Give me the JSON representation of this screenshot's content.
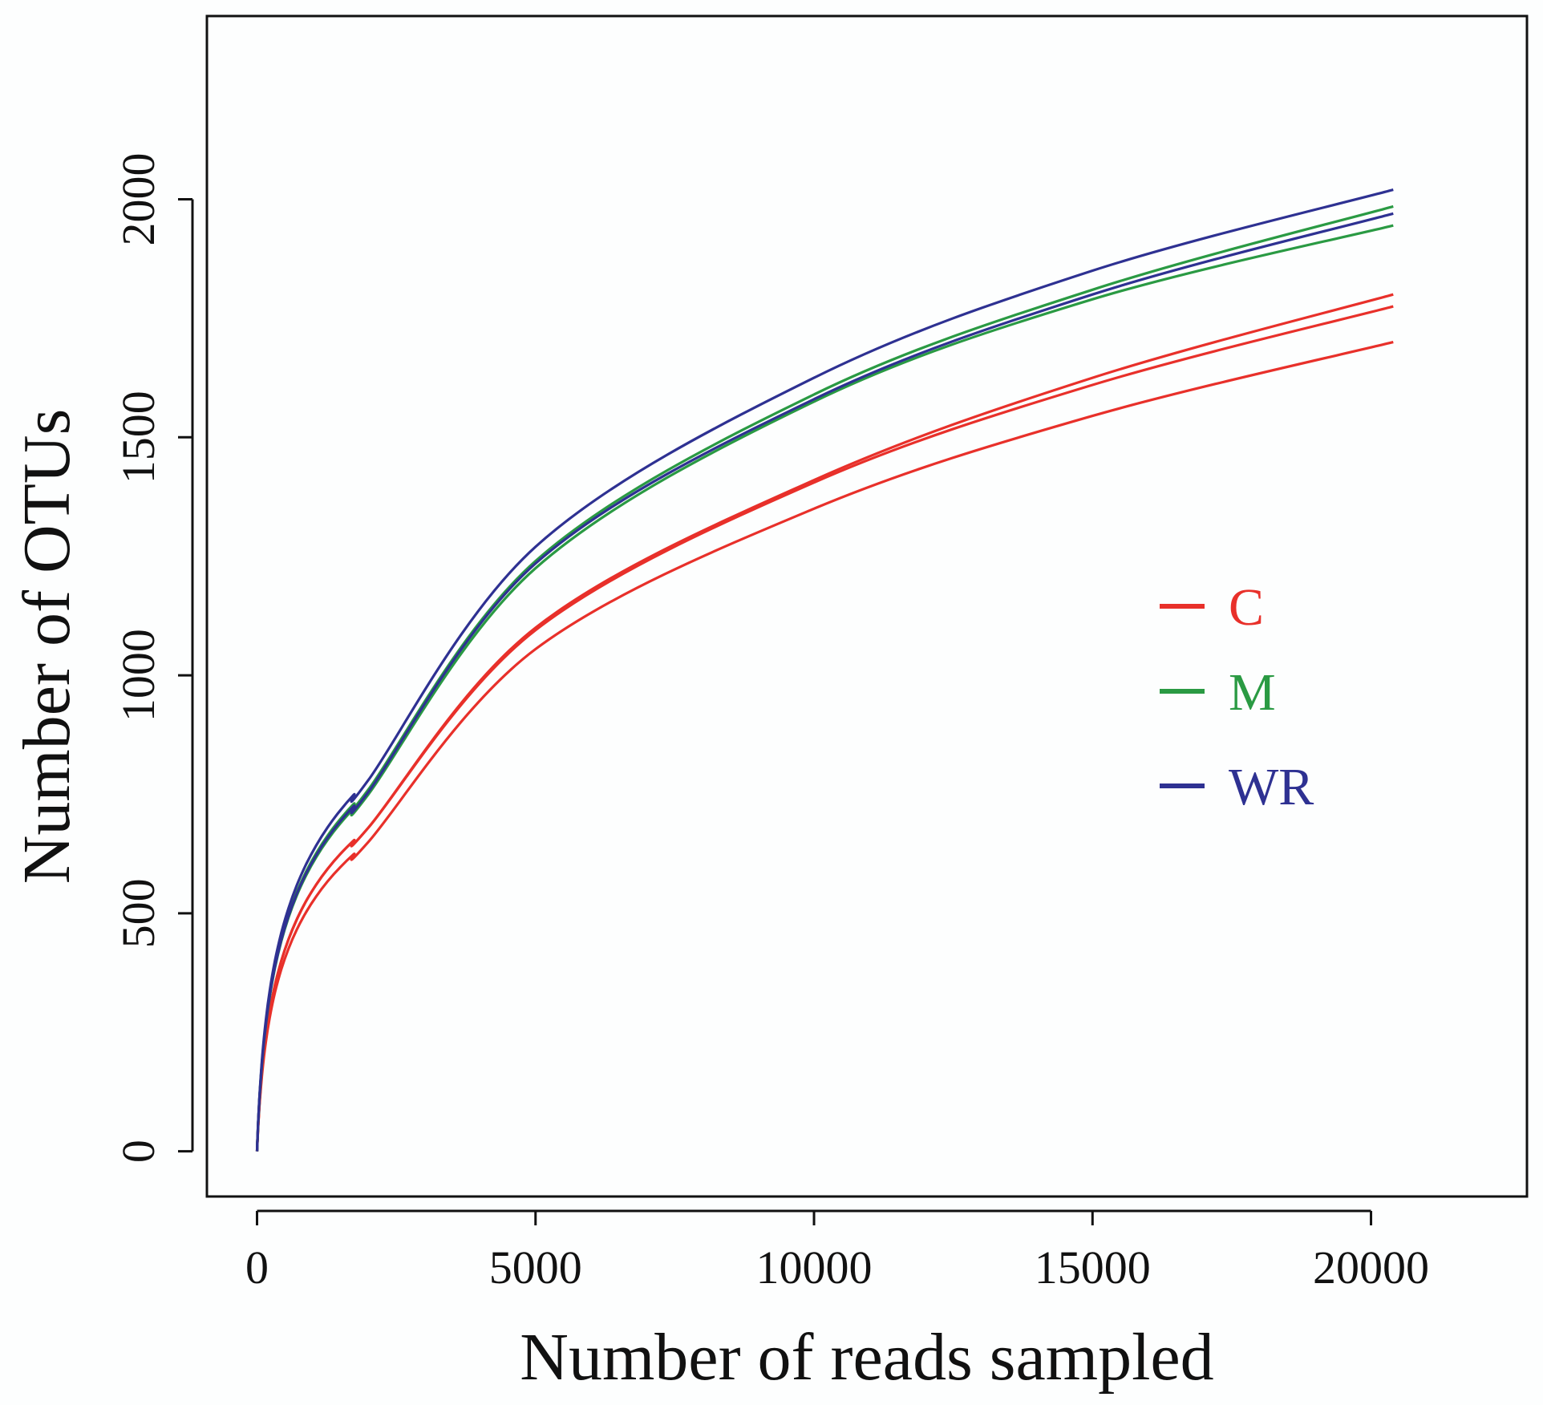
{
  "chart_data": {
    "type": "line",
    "title": "",
    "xlabel": "Number of reads sampled",
    "ylabel": "Number of OTUs",
    "xlim": [
      -900,
      22800
    ],
    "ylim": [
      -95,
      2385
    ],
    "x_ticks": [
      0,
      5000,
      10000,
      15000,
      20000
    ],
    "x_tick_labels": [
      "0",
      "5000",
      "10000",
      "15000",
      "20000"
    ],
    "y_ticks": [
      0,
      500,
      1000,
      1500,
      2000
    ],
    "y_tick_labels": [
      "0",
      "500",
      "1000",
      "1500",
      "2000"
    ],
    "grid": false,
    "legend": {
      "position": "right-middle",
      "entries": [
        {
          "label": "C",
          "color": "#e8302a"
        },
        {
          "label": "M",
          "color": "#2a9a43"
        },
        {
          "label": "WR",
          "color": "#2e3192"
        }
      ]
    },
    "series": [
      {
        "name": "C",
        "group": "C",
        "color": "#e8302a",
        "x": [
          0,
          2000,
          5000,
          10000,
          15000,
          20400
        ],
        "y": [
          0,
          680,
          1100,
          1410,
          1625,
          1800
        ]
      },
      {
        "name": "C",
        "group": "C",
        "color": "#e8302a",
        "x": [
          0,
          2000,
          5000,
          10000,
          15000,
          20400
        ],
        "y": [
          0,
          680,
          1095,
          1405,
          1610,
          1775
        ]
      },
      {
        "name": "C",
        "group": "C",
        "color": "#e8302a",
        "x": [
          0,
          2000,
          5000,
          10000,
          15000,
          20400
        ],
        "y": [
          0,
          650,
          1055,
          1350,
          1545,
          1700
        ]
      },
      {
        "name": "M",
        "group": "M",
        "color": "#2a9a43",
        "x": [
          0,
          2000,
          5000,
          10000,
          15000,
          20400
        ],
        "y": [
          0,
          760,
          1240,
          1590,
          1810,
          1985
        ]
      },
      {
        "name": "M",
        "group": "M",
        "color": "#2a9a43",
        "x": [
          0,
          2000,
          5000,
          10000,
          15000,
          20400
        ],
        "y": [
          0,
          750,
          1225,
          1575,
          1790,
          1945
        ]
      },
      {
        "name": "WR",
        "group": "WR",
        "color": "#2e3192",
        "x": [
          0,
          2000,
          5000,
          10000,
          15000,
          20400
        ],
        "y": [
          0,
          780,
          1270,
          1625,
          1850,
          2020
        ]
      },
      {
        "name": "WR",
        "group": "WR",
        "color": "#2e3192",
        "x": [
          0,
          2000,
          5000,
          10000,
          15000,
          20400
        ],
        "y": [
          0,
          755,
          1235,
          1580,
          1800,
          1970
        ]
      }
    ]
  }
}
